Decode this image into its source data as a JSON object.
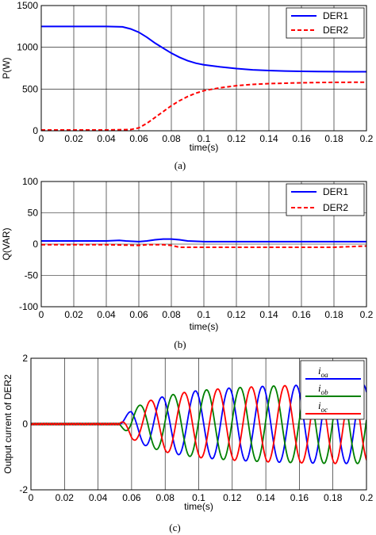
{
  "chart_data": [
    {
      "type": "line",
      "caption": "(a)",
      "xlabel": "time(s)",
      "ylabel": "P(W)",
      "xlim": [
        0,
        0.2
      ],
      "ylim": [
        0,
        1500
      ],
      "xticks": [
        "0",
        "0.02",
        "0.04",
        "0.06",
        "0.08",
        "0.1",
        "0.12",
        "0.14",
        "0.16",
        "0.18",
        "0.2"
      ],
      "yticks": [
        "0",
        "500",
        "1000",
        "1500"
      ],
      "grid": true,
      "legend_position": "top-right",
      "series": [
        {
          "name": "DER1",
          "color": "#0000ff",
          "dash": "solid",
          "x": [
            0,
            0.02,
            0.04,
            0.05,
            0.055,
            0.06,
            0.065,
            0.07,
            0.075,
            0.08,
            0.085,
            0.09,
            0.095,
            0.1,
            0.11,
            0.12,
            0.13,
            0.14,
            0.15,
            0.16,
            0.17,
            0.18,
            0.19,
            0.2
          ],
          "y": [
            1250,
            1250,
            1250,
            1245,
            1220,
            1180,
            1120,
            1050,
            990,
            930,
            880,
            840,
            810,
            790,
            765,
            745,
            730,
            722,
            716,
            712,
            710,
            708,
            707,
            707
          ]
        },
        {
          "name": "DER2",
          "color": "#ff0000",
          "dash": "dashed",
          "x": [
            0,
            0.02,
            0.04,
            0.055,
            0.06,
            0.065,
            0.07,
            0.075,
            0.08,
            0.085,
            0.09,
            0.095,
            0.1,
            0.11,
            0.12,
            0.13,
            0.14,
            0.15,
            0.16,
            0.17,
            0.18,
            0.19,
            0.2
          ],
          "y": [
            10,
            10,
            10,
            15,
            35,
            90,
            160,
            230,
            300,
            360,
            410,
            450,
            480,
            515,
            540,
            555,
            565,
            570,
            575,
            578,
            580,
            581,
            582
          ]
        }
      ]
    },
    {
      "type": "line",
      "caption": "(b)",
      "xlabel": "time(s)",
      "ylabel": "Q(VAR)",
      "xlim": [
        0,
        0.2
      ],
      "ylim": [
        -100,
        100
      ],
      "xticks": [
        "0",
        "0.02",
        "0.04",
        "0.06",
        "0.08",
        "0.1",
        "0.12",
        "0.14",
        "0.16",
        "0.18",
        "0.2"
      ],
      "yticks": [
        "-100",
        "-50",
        "0",
        "50",
        "100"
      ],
      "grid": true,
      "legend_position": "top-right",
      "series": [
        {
          "name": "DER1",
          "color": "#0000ff",
          "dash": "solid",
          "x": [
            0,
            0.02,
            0.04,
            0.048,
            0.052,
            0.06,
            0.065,
            0.07,
            0.075,
            0.08,
            0.085,
            0.09,
            0.1,
            0.12,
            0.14,
            0.16,
            0.18,
            0.2
          ],
          "y": [
            5,
            5,
            5,
            6,
            5,
            4,
            5,
            7,
            8,
            8,
            7,
            5,
            4,
            4,
            4,
            4,
            4,
            4
          ]
        },
        {
          "name": "DER2",
          "color": "#ff0000",
          "dash": "dashed",
          "x": [
            0,
            0.02,
            0.04,
            0.06,
            0.065,
            0.07,
            0.075,
            0.08,
            0.085,
            0.1,
            0.12,
            0.14,
            0.16,
            0.18,
            0.19,
            0.2
          ],
          "y": [
            -1,
            -1,
            -1,
            -2,
            -1,
            -1,
            -1,
            -2,
            -5,
            -5,
            -5,
            -5,
            -5,
            -5,
            -4,
            -3
          ]
        }
      ]
    },
    {
      "type": "line",
      "caption": "(c)",
      "xlabel": "time(s)",
      "ylabel": "Output current of DER2",
      "xlim": [
        0,
        0.2
      ],
      "ylim": [
        -2,
        2
      ],
      "xticks": [
        "0",
        "0.02",
        "0.04",
        "0.06",
        "0.08",
        "0.1",
        "0.12",
        "0.14",
        "0.16",
        "0.18",
        "0.2"
      ],
      "yticks": [
        "-2",
        "0",
        "2"
      ],
      "grid": true,
      "legend_position": "top-right",
      "waveform": {
        "frequency_hz": 50,
        "onset_s": 0.053,
        "amplitude_envelope": {
          "x": [
            0,
            0.053,
            0.06,
            0.07,
            0.08,
            0.09,
            0.1,
            0.12,
            0.14,
            0.16,
            0.18,
            0.2
          ],
          "y": [
            0.02,
            0.02,
            0.45,
            0.7,
            0.85,
            0.95,
            1.02,
            1.1,
            1.15,
            1.18,
            1.2,
            1.2
          ]
        }
      },
      "series": [
        {
          "name": "i",
          "subscript": "oa",
          "color": "#0000ff",
          "phase_deg": 0
        },
        {
          "name": "i",
          "subscript": "ob",
          "color": "#008000",
          "phase_deg": -120
        },
        {
          "name": "i",
          "subscript": "oc",
          "color": "#ff0000",
          "phase_deg": 120
        }
      ]
    }
  ]
}
